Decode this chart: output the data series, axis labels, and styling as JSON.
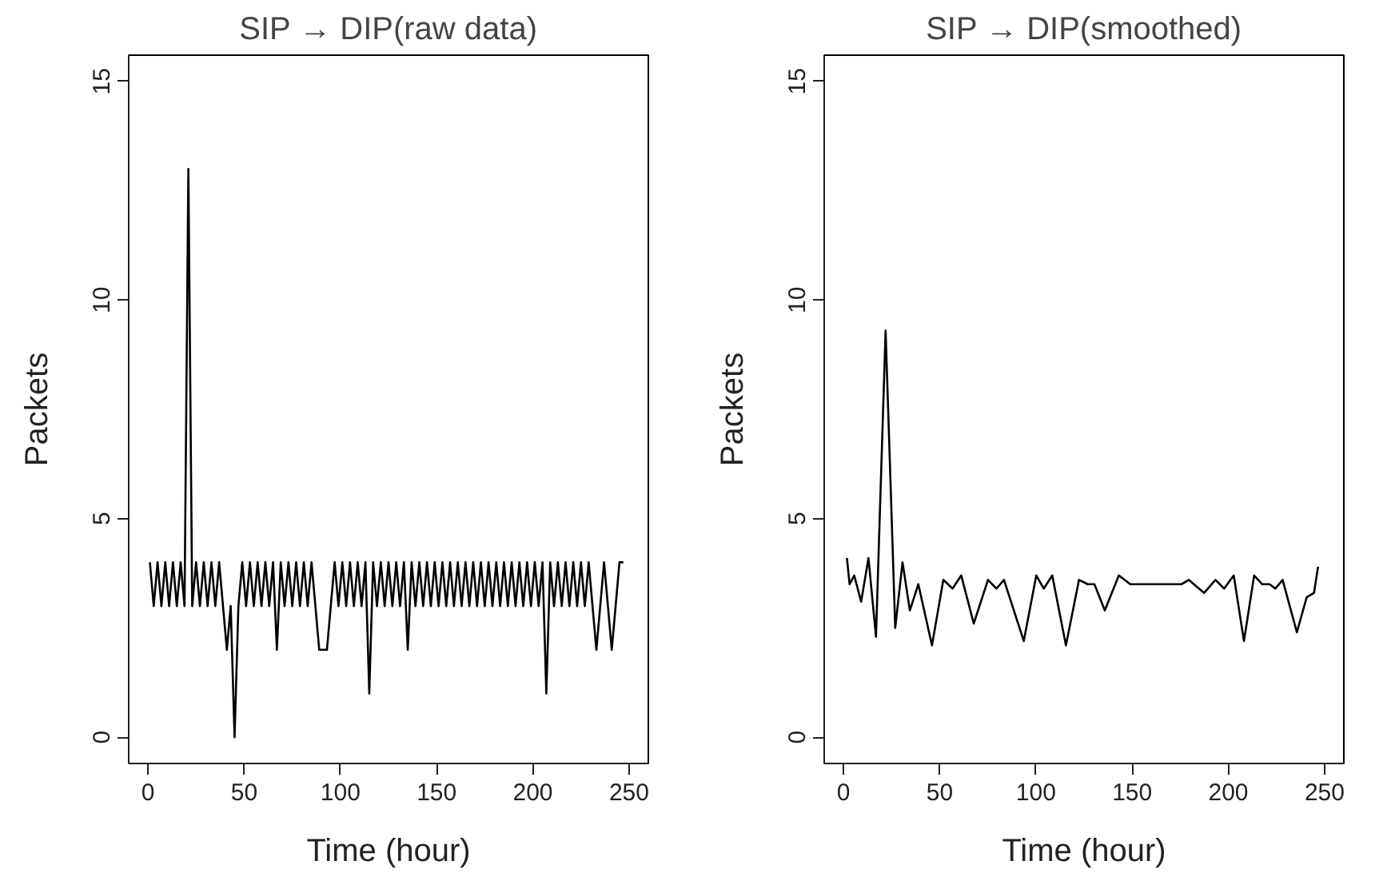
{
  "chart_data": [
    {
      "type": "line",
      "title": "SIP → DIP(raw data)",
      "xlabel": "Time (hour)",
      "ylabel": "Packets",
      "xlim": [
        -10,
        260
      ],
      "ylim": [
        -0.6,
        15.6
      ],
      "xticks": [
        0,
        50,
        100,
        150,
        200,
        250
      ],
      "yticks": [
        0,
        5,
        10,
        15
      ],
      "series": [
        {
          "color": "#000000",
          "x": [
            1,
            3,
            5,
            7,
            9,
            11,
            13,
            15,
            17,
            19,
            21,
            23,
            25,
            27,
            29,
            31,
            33,
            35,
            37,
            39,
            41,
            43,
            45,
            47,
            49,
            51,
            53,
            55,
            57,
            59,
            61,
            63,
            65,
            67,
            69,
            71,
            73,
            75,
            77,
            79,
            81,
            83,
            85,
            87,
            89,
            91,
            93,
            95,
            97,
            99,
            101,
            103,
            105,
            107,
            109,
            111,
            113,
            115,
            117,
            119,
            121,
            123,
            125,
            127,
            129,
            131,
            133,
            135,
            137,
            139,
            141,
            143,
            145,
            147,
            149,
            151,
            153,
            155,
            157,
            159,
            161,
            163,
            165,
            167,
            169,
            171,
            173,
            175,
            177,
            179,
            181,
            183,
            185,
            187,
            189,
            191,
            193,
            195,
            197,
            199,
            201,
            203,
            205,
            207,
            209,
            211,
            213,
            215,
            217,
            219,
            221,
            223,
            225,
            227,
            229,
            231,
            233,
            235,
            237,
            239,
            241,
            243,
            245,
            247
          ],
          "values": [
            4,
            3,
            4,
            3,
            4,
            3,
            4,
            3,
            4,
            3,
            13,
            3,
            4,
            3,
            4,
            3,
            4,
            3,
            4,
            3,
            2,
            3,
            0,
            3,
            4,
            3,
            4,
            3,
            4,
            3,
            4,
            3,
            4,
            2,
            4,
            3,
            4,
            3,
            4,
            3,
            4,
            3,
            4,
            3,
            2,
            2,
            2,
            3,
            4,
            3,
            4,
            3,
            4,
            3,
            4,
            3,
            4,
            1,
            4,
            3,
            4,
            3,
            4,
            3,
            4,
            3,
            4,
            2,
            4,
            3,
            4,
            3,
            4,
            3,
            4,
            3,
            4,
            3,
            4,
            3,
            4,
            3,
            4,
            3,
            4,
            3,
            4,
            3,
            4,
            3,
            4,
            3,
            4,
            3,
            4,
            3,
            4,
            3,
            4,
            3,
            4,
            3,
            4,
            1,
            4,
            3,
            4,
            3,
            4,
            3,
            4,
            3,
            4,
            3,
            4,
            3,
            2,
            3,
            4,
            3,
            2,
            3,
            4,
            4
          ]
        }
      ]
    },
    {
      "type": "line",
      "title": "SIP → DIP(smoothed)",
      "xlabel": "Time (hour)",
      "ylabel": "Packets",
      "xlim": [
        -10,
        260
      ],
      "ylim": [
        -0.6,
        15.6
      ],
      "xticks": [
        0,
        50,
        100,
        150,
        200,
        250
      ],
      "yticks": [
        0,
        5,
        10,
        15
      ],
      "series": [
        {
          "color": "#000000",
          "x": [
            1.8,
            3.2,
            5.6,
            9.2,
            13,
            16.9,
            21.9,
            26.9,
            30.7,
            34.5,
            38.9,
            46,
            51.9,
            56.7,
            61.2,
            67.7,
            75.1,
            79.5,
            83.4,
            93.7,
            100.2,
            104.1,
            108.5,
            115.6,
            122.4,
            126.9,
            130.4,
            135.8,
            143.1,
            149,
            162.3,
            171.1,
            175.6,
            179.4,
            187.4,
            193.3,
            197.8,
            202.8,
            208.1,
            213.4,
            217.6,
            221.4,
            224.4,
            228.2,
            235.6,
            240.7,
            244.5,
            246.6
          ],
          "values": [
            4.1,
            3.5,
            3.7,
            3.1,
            4.1,
            2.3,
            9.3,
            2.5,
            4.0,
            2.9,
            3.5,
            2.1,
            3.6,
            3.4,
            3.7,
            2.6,
            3.6,
            3.4,
            3.6,
            2.2,
            3.7,
            3.4,
            3.7,
            2.1,
            3.6,
            3.5,
            3.5,
            2.9,
            3.7,
            3.5,
            3.5,
            3.5,
            3.5,
            3.6,
            3.3,
            3.6,
            3.4,
            3.7,
            2.2,
            3.7,
            3.5,
            3.5,
            3.4,
            3.6,
            2.4,
            3.2,
            3.3,
            3.9
          ]
        }
      ]
    }
  ]
}
